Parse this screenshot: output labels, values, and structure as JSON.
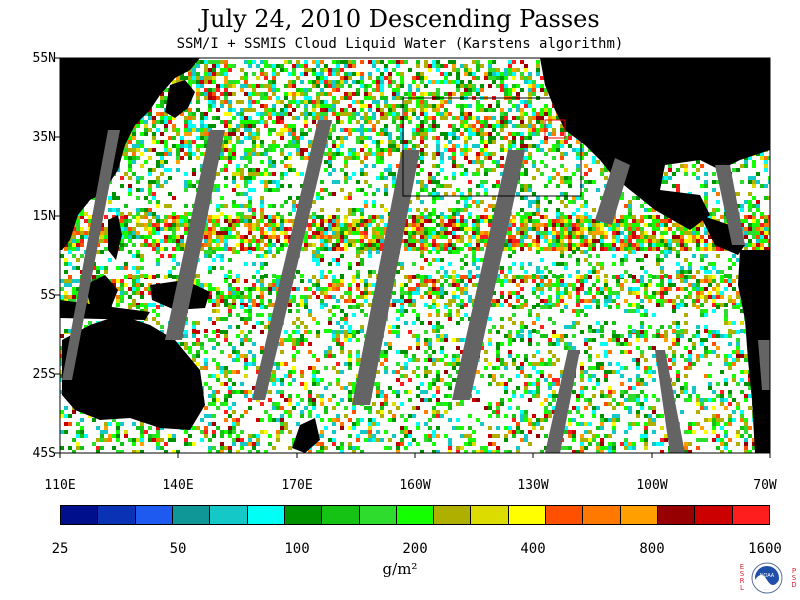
{
  "title": "July 24, 2010  Descending Passes",
  "subtitle": "SSM/I + SSMIS Cloud Liquid Water (Karstens algorithm)",
  "lat_labels": [
    "55N",
    "35N",
    "15N",
    "5S",
    "25S",
    "45S"
  ],
  "lon_labels": [
    "110E",
    "140E",
    "170E",
    "160W",
    "130W",
    "100W",
    "70W"
  ],
  "colorbar": {
    "colors": [
      "#000f8c",
      "#0a32b4",
      "#1e5af0",
      "#0f9696",
      "#14c8c8",
      "#00fff5",
      "#009100",
      "#14c314",
      "#2ddc2d",
      "#14ff00",
      "#afaf00",
      "#dcdc00",
      "#ffff00",
      "#ff5000",
      "#ff7800",
      "#ffa000",
      "#960000",
      "#cd0000",
      "#ff1e1e"
    ],
    "tick_labels": [
      "25",
      "50",
      "100",
      "200",
      "400",
      "800",
      "1600"
    ],
    "units": "g/m²"
  },
  "logo": {
    "left_letters": "ESRL",
    "right_letters": "PSD",
    "name": "NOAA"
  },
  "map": {
    "ocean_color": "#ffffff",
    "land_color": "#000000",
    "missing_swath_color": "#646464",
    "subregion_box": "black",
    "small_box": "red"
  }
}
